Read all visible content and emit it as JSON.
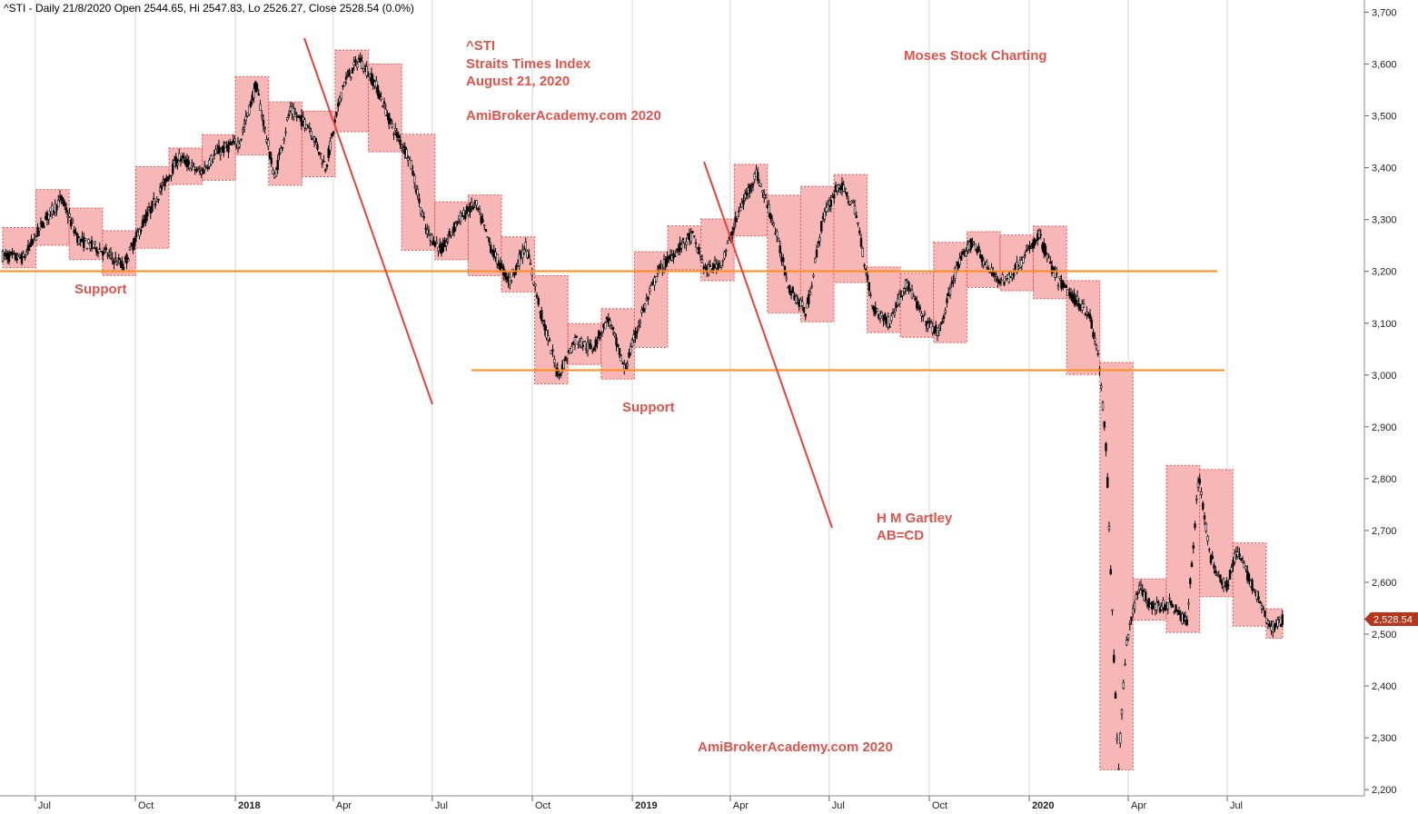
{
  "header": "^STI - Daily 21/8/2020 Open 2544.65, Hi 2547.83, Lo 2526.27, Close 2528.54 (0.0%)",
  "price_label": "2,528.54",
  "annotations": {
    "ticker": "^STI",
    "name": "Straits Times Index",
    "date": "August 21, 2020",
    "site_top": "AmiBrokerAcademy.com 2020",
    "brand": "Moses Stock Charting",
    "support_left": "Support",
    "support_mid": "Support",
    "gartley_1": "H M Gartley",
    "gartley_2": "AB=CD",
    "site_bottom": "AmiBrokerAcademy.com  2020"
  },
  "colors": {
    "box_fill": "#f7b7b7",
    "box_border": "#d9534f",
    "support_line": "#ff8c1a",
    "trend_line": "#e8403a",
    "text": "#e0534a",
    "candle": "#000000",
    "price_tag": "#b5361c"
  },
  "chart_data": {
    "type": "candlestick",
    "title": "^STI - Daily 21/8/2020 Open 2544.65, Hi 2547.83, Lo 2526.27, Close 2528.54 (0.0%)",
    "ylim": [
      2180,
      3720
    ],
    "y_ticks": [
      "3,700",
      "3,600",
      "3,500",
      "3,400",
      "3,300",
      "3,200",
      "3,100",
      "3,000",
      "2,900",
      "2,800",
      "2,700",
      "2,600",
      "2,500",
      "2,400",
      "2,300",
      "2,200"
    ],
    "x_ticks": [
      "Jul",
      "Oct",
      "2018",
      "Apr",
      "Jul",
      "Oct",
      "2019",
      "Apr",
      "Jul",
      "Oct",
      "2020",
      "Apr",
      "Jul"
    ],
    "support_levels": [
      3200,
      3012
    ],
    "last_close": 2528.54,
    "close_path": [
      [
        "2017-06-01",
        3230
      ],
      [
        "2017-06-20",
        3225
      ],
      [
        "2017-07-10",
        3300
      ],
      [
        "2017-07-25",
        3340
      ],
      [
        "2017-08-10",
        3260
      ],
      [
        "2017-09-01",
        3240
      ],
      [
        "2017-09-20",
        3210
      ],
      [
        "2017-10-05",
        3280
      ],
      [
        "2017-10-25",
        3360
      ],
      [
        "2017-11-10",
        3420
      ],
      [
        "2017-11-30",
        3390
      ],
      [
        "2017-12-15",
        3430
      ],
      [
        "2018-01-05",
        3450
      ],
      [
        "2018-01-20",
        3560
      ],
      [
        "2018-02-06",
        3380
      ],
      [
        "2018-02-20",
        3510
      ],
      [
        "2018-03-10",
        3480
      ],
      [
        "2018-03-25",
        3400
      ],
      [
        "2018-04-10",
        3560
      ],
      [
        "2018-04-25",
        3610
      ],
      [
        "2018-05-10",
        3560
      ],
      [
        "2018-05-25",
        3480
      ],
      [
        "2018-06-10",
        3420
      ],
      [
        "2018-06-25",
        3280
      ],
      [
        "2018-07-10",
        3240
      ],
      [
        "2018-07-25",
        3300
      ],
      [
        "2018-08-10",
        3330
      ],
      [
        "2018-08-25",
        3240
      ],
      [
        "2018-09-10",
        3180
      ],
      [
        "2018-09-25",
        3250
      ],
      [
        "2018-10-10",
        3110
      ],
      [
        "2018-10-25",
        3000
      ],
      [
        "2018-11-10",
        3070
      ],
      [
        "2018-11-25",
        3050
      ],
      [
        "2018-12-10",
        3110
      ],
      [
        "2018-12-25",
        3010
      ],
      [
        "2019-01-10",
        3120
      ],
      [
        "2019-01-25",
        3200
      ],
      [
        "2019-02-10",
        3240
      ],
      [
        "2019-02-25",
        3270
      ],
      [
        "2019-03-10",
        3200
      ],
      [
        "2019-03-25",
        3220
      ],
      [
        "2019-04-10",
        3320
      ],
      [
        "2019-04-25",
        3390
      ],
      [
        "2019-05-10",
        3300
      ],
      [
        "2019-05-25",
        3170
      ],
      [
        "2019-06-10",
        3120
      ],
      [
        "2019-06-25",
        3300
      ],
      [
        "2019-07-10",
        3370
      ],
      [
        "2019-07-25",
        3320
      ],
      [
        "2019-08-10",
        3130
      ],
      [
        "2019-08-25",
        3100
      ],
      [
        "2019-09-10",
        3180
      ],
      [
        "2019-09-25",
        3110
      ],
      [
        "2019-10-10",
        3080
      ],
      [
        "2019-10-25",
        3200
      ],
      [
        "2019-11-10",
        3260
      ],
      [
        "2019-11-25",
        3200
      ],
      [
        "2019-12-10",
        3180
      ],
      [
        "2019-12-25",
        3220
      ],
      [
        "2020-01-10",
        3270
      ],
      [
        "2020-01-25",
        3190
      ],
      [
        "2020-02-10",
        3150
      ],
      [
        "2020-02-25",
        3120
      ],
      [
        "2020-03-05",
        3030
      ],
      [
        "2020-03-12",
        2850
      ],
      [
        "2020-03-18",
        2500
      ],
      [
        "2020-03-23",
        2240
      ],
      [
        "2020-03-30",
        2480
      ],
      [
        "2020-04-10",
        2590
      ],
      [
        "2020-04-25",
        2550
      ],
      [
        "2020-05-10",
        2560
      ],
      [
        "2020-05-25",
        2520
      ],
      [
        "2020-06-05",
        2810
      ],
      [
        "2020-06-15",
        2650
      ],
      [
        "2020-06-30",
        2590
      ],
      [
        "2020-07-10",
        2660
      ],
      [
        "2020-07-25",
        2590
      ],
      [
        "2020-08-10",
        2510
      ],
      [
        "2020-08-21",
        2528.54
      ]
    ]
  }
}
